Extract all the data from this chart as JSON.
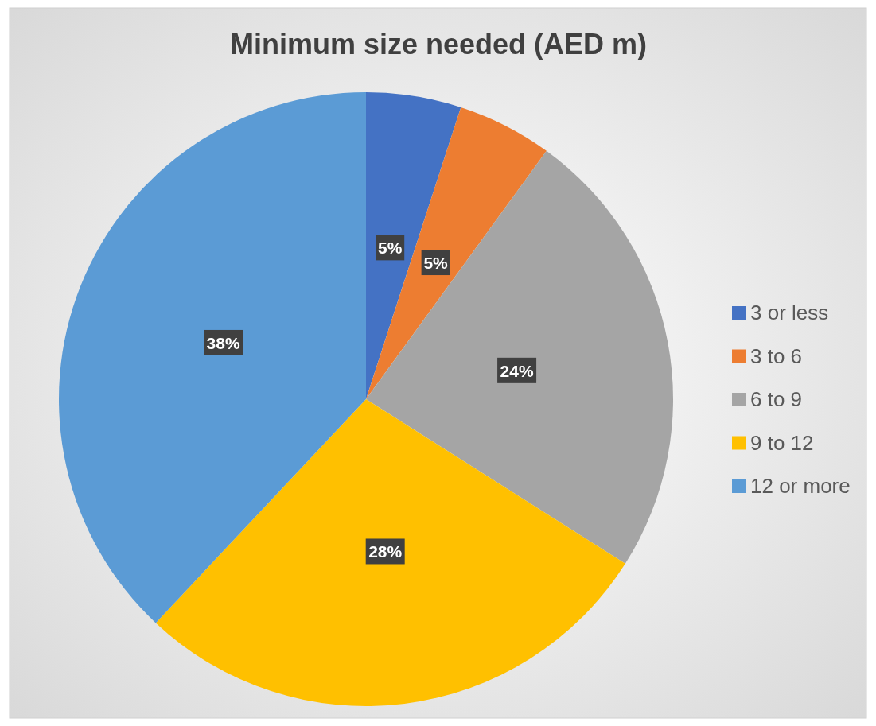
{
  "chart_data": {
    "type": "pie",
    "title": "Minimum size needed (AED m)",
    "categories": [
      "3 or less",
      "3 to 6",
      "6 to 9",
      "9 to 12",
      "12 or more"
    ],
    "values": [
      5,
      5,
      24,
      28,
      38
    ],
    "colors": [
      "#4472c4",
      "#ed7d31",
      "#a5a5a5",
      "#ffc000",
      "#5b9bd5"
    ],
    "value_labels": [
      "5%",
      "5%",
      "24%",
      "28%",
      "38%"
    ],
    "legend": "right"
  }
}
